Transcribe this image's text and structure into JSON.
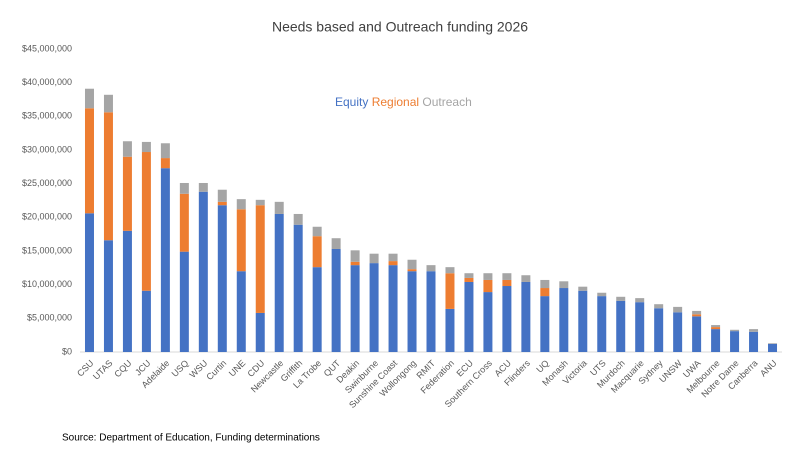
{
  "chart_data": {
    "type": "stacked-bar",
    "title": "Needs based and Outreach funding 2026",
    "source": "Source: Department of Education, Funding determinations",
    "categories": [
      "CSU",
      "UTAS",
      "CQU",
      "JCU",
      "Adelaide",
      "USQ",
      "WSU",
      "Curtin",
      "UNE",
      "CDU",
      "Newcastle",
      "Griffith",
      "La Trobe",
      "QUT",
      "Deakin",
      "Swinburne",
      "Sunshine Coast",
      "Wollongong",
      "RMIT",
      "Federation",
      "ECU",
      "Southern Cross",
      "ACU",
      "Flinders",
      "UQ",
      "Monash",
      "Victoria",
      "UTS",
      "Murdoch",
      "Macquarie",
      "Sydney",
      "UNSW",
      "UWA",
      "Melbourne",
      "Notre Dame",
      "Canberra",
      "ANU"
    ],
    "series": [
      {
        "name": "Equity",
        "color": "#4472c4",
        "values": [
          20600000,
          16600000,
          18000000,
          9100000,
          27300000,
          14900000,
          23800000,
          21800000,
          12000000,
          5800000,
          20500000,
          18900000,
          12600000,
          15300000,
          12900000,
          13200000,
          12900000,
          12000000,
          12000000,
          6400000,
          10400000,
          8900000,
          9800000,
          10400000,
          8300000,
          9500000,
          9100000,
          8300000,
          7600000,
          7400000,
          6500000,
          5900000,
          5300000,
          3400000,
          3100000,
          3000000,
          1200000
        ]
      },
      {
        "name": "Regional",
        "color": "#ed7d31",
        "values": [
          15600000,
          19000000,
          11000000,
          20600000,
          1500000,
          8600000,
          0,
          500000,
          9200000,
          16000000,
          0,
          0,
          4600000,
          0,
          500000,
          0,
          600000,
          300000,
          0,
          5300000,
          600000,
          1800000,
          900000,
          0,
          1200000,
          0,
          0,
          0,
          0,
          0,
          0,
          0,
          300000,
          300000,
          0,
          0,
          0
        ]
      },
      {
        "name": "Outreach",
        "color": "#a5a5a5",
        "values": [
          2900000,
          2600000,
          2300000,
          1500000,
          2200000,
          1600000,
          1300000,
          1800000,
          1500000,
          800000,
          1800000,
          1600000,
          1400000,
          1600000,
          1700000,
          1400000,
          1100000,
          1400000,
          900000,
          900000,
          700000,
          1000000,
          1000000,
          1000000,
          1200000,
          1000000,
          600000,
          500000,
          600000,
          600000,
          600000,
          800000,
          500000,
          300000,
          200000,
          400000,
          100000
        ]
      }
    ],
    "ylim": [
      0,
      45000000
    ],
    "yticks": [
      {
        "value": 0,
        "label": "$0"
      },
      {
        "value": 5000000,
        "label": "$5,000,000"
      },
      {
        "value": 10000000,
        "label": "$10,000,000"
      },
      {
        "value": 15000000,
        "label": "$15,000,000"
      },
      {
        "value": 20000000,
        "label": "$20,000,000"
      },
      {
        "value": 25000000,
        "label": "$25,000,000"
      },
      {
        "value": 30000000,
        "label": "$30,000,000"
      },
      {
        "value": 35000000,
        "label": "$35,000,000"
      },
      {
        "value": 40000000,
        "label": "$40,000,000"
      },
      {
        "value": 45000000,
        "label": "$45,000,000"
      }
    ],
    "grid": false
  }
}
